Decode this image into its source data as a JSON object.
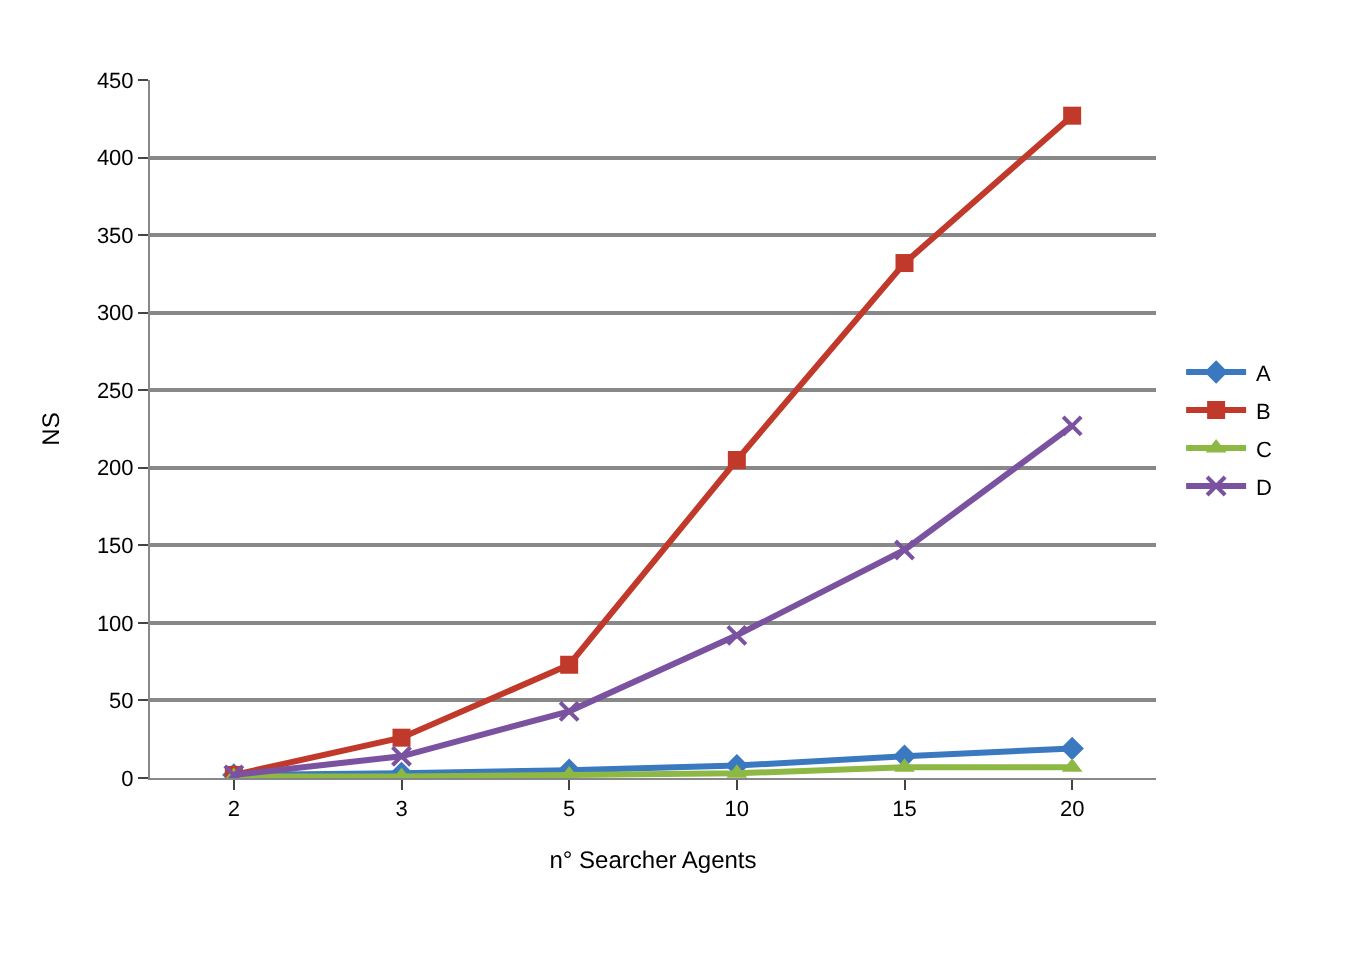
{
  "chart_data": {
    "type": "line",
    "xlabel": "n° Searcher Agents",
    "ylabel": "NS",
    "categories": [
      "2",
      "3",
      "5",
      "10",
      "15",
      "20"
    ],
    "series": [
      {
        "name": "A",
        "color": "#3a78c0",
        "marker": "diamond",
        "values": [
          2,
          3,
          5,
          8,
          14,
          19
        ]
      },
      {
        "name": "B",
        "color": "#c0392b",
        "marker": "square",
        "values": [
          2,
          26,
          73,
          205,
          332,
          427
        ]
      },
      {
        "name": "C",
        "color": "#8db843",
        "marker": "triangle",
        "values": [
          1,
          1,
          2,
          3,
          7,
          7
        ]
      },
      {
        "name": "D",
        "color": "#7a52a0",
        "marker": "cross",
        "values": [
          2,
          14,
          43,
          92,
          147,
          227
        ]
      }
    ],
    "ylim": [
      0,
      450
    ],
    "yticks": [
      0,
      50,
      100,
      150,
      200,
      250,
      300,
      350,
      400,
      450
    ],
    "grid": "y",
    "legend": "right"
  }
}
